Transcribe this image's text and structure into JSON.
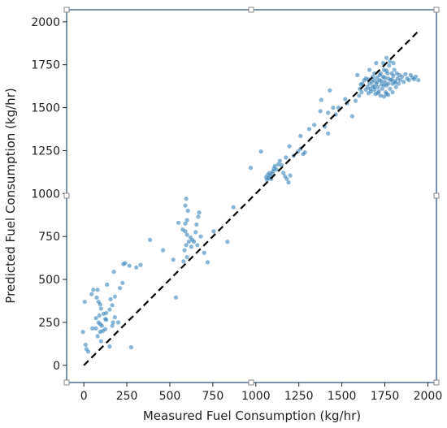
{
  "chart_data": {
    "type": "scatter",
    "title": "",
    "xlabel": "Measured Fuel Consumption (kg/hr)",
    "ylabel": "Predicted Fuel Consumption (kg/hr)",
    "xlim": [
      -100,
      2050
    ],
    "ylim": [
      -100,
      2070
    ],
    "xticks": [
      0,
      250,
      500,
      750,
      1000,
      1250,
      1500,
      1750,
      2000
    ],
    "yticks": [
      0,
      250,
      500,
      750,
      1000,
      1250,
      1500,
      1750,
      2000
    ],
    "xtick_labels": [
      "0",
      "250",
      "500",
      "750",
      "1000",
      "1250",
      "1500",
      "1750",
      "2000"
    ],
    "ytick_labels": [
      "0",
      "250",
      "500",
      "750",
      "1000",
      "1250",
      "1500",
      "1750",
      "2000"
    ],
    "grid": false,
    "legend": "none",
    "point_color": "#2878b5",
    "frame_color": "#1f4e79",
    "reference_line": {
      "style": "dashed",
      "color": "#000000",
      "points": [
        [
          0,
          0
        ],
        [
          1950,
          1950
        ]
      ]
    },
    "series": [
      {
        "points": [
          [
            -5,
            195
          ],
          [
            10,
            120
          ],
          [
            15,
            95
          ],
          [
            25,
            80
          ],
          [
            5,
            370
          ],
          [
            45,
            415
          ],
          [
            55,
            440
          ],
          [
            80,
            440
          ],
          [
            75,
            395
          ],
          [
            85,
            370
          ],
          [
            95,
            355
          ],
          [
            100,
            330
          ],
          [
            115,
            300
          ],
          [
            130,
            305
          ],
          [
            150,
            325
          ],
          [
            125,
            270
          ],
          [
            90,
            290
          ],
          [
            70,
            275
          ],
          [
            85,
            250
          ],
          [
            95,
            240
          ],
          [
            105,
            230
          ],
          [
            70,
            215
          ],
          [
            50,
            215
          ],
          [
            95,
            195
          ],
          [
            110,
            200
          ],
          [
            130,
            265
          ],
          [
            125,
            210
          ],
          [
            165,
            230
          ],
          [
            170,
            250
          ],
          [
            200,
            250
          ],
          [
            180,
            280
          ],
          [
            165,
            350
          ],
          [
            155,
            385
          ],
          [
            180,
            400
          ],
          [
            210,
            450
          ],
          [
            225,
            480
          ],
          [
            135,
            470
          ],
          [
            175,
            545
          ],
          [
            230,
            590
          ],
          [
            240,
            595
          ],
          [
            265,
            580
          ],
          [
            305,
            570
          ],
          [
            330,
            585
          ],
          [
            385,
            730
          ],
          [
            460,
            670
          ],
          [
            535,
            395
          ],
          [
            275,
            105
          ],
          [
            150,
            110
          ],
          [
            80,
            170
          ],
          [
            100,
            140
          ],
          [
            520,
            615
          ],
          [
            580,
            605
          ],
          [
            600,
            630
          ],
          [
            585,
            670
          ],
          [
            595,
            700
          ],
          [
            610,
            720
          ],
          [
            620,
            745
          ],
          [
            630,
            730
          ],
          [
            590,
            780
          ],
          [
            575,
            790
          ],
          [
            600,
            760
          ],
          [
            640,
            720
          ],
          [
            660,
            700
          ],
          [
            625,
            690
          ],
          [
            650,
            775
          ],
          [
            590,
            825
          ],
          [
            550,
            830
          ],
          [
            600,
            845
          ],
          [
            655,
            820
          ],
          [
            665,
            865
          ],
          [
            670,
            890
          ],
          [
            595,
            970
          ],
          [
            590,
            930
          ],
          [
            605,
            900
          ],
          [
            680,
            750
          ],
          [
            700,
            655
          ],
          [
            720,
            600
          ],
          [
            755,
            780
          ],
          [
            835,
            720
          ],
          [
            870,
            920
          ]
        ]
      },
      {
        "points": [
          [
            970,
            1150
          ],
          [
            1030,
            1245
          ],
          [
            1060,
            1095
          ],
          [
            1065,
            1080
          ],
          [
            1070,
            1110
          ],
          [
            1075,
            1090
          ],
          [
            1080,
            1120
          ],
          [
            1085,
            1100
          ],
          [
            1090,
            1085
          ],
          [
            1095,
            1115
          ],
          [
            1100,
            1130
          ],
          [
            1105,
            1145
          ],
          [
            1110,
            1160
          ],
          [
            1120,
            1140
          ],
          [
            1130,
            1170
          ],
          [
            1140,
            1190
          ],
          [
            1150,
            1165
          ],
          [
            1160,
            1120
          ],
          [
            1170,
            1100
          ],
          [
            1180,
            1085
          ],
          [
            1190,
            1065
          ],
          [
            1200,
            1105
          ],
          [
            1175,
            1210
          ],
          [
            1195,
            1275
          ],
          [
            1220,
            1220
          ],
          [
            1245,
            1245
          ],
          [
            1260,
            1260
          ],
          [
            1275,
            1230
          ],
          [
            1285,
            1240
          ],
          [
            1260,
            1335
          ],
          [
            1310,
            1375
          ],
          [
            1340,
            1400
          ],
          [
            1375,
            1480
          ],
          [
            1420,
            1470
          ],
          [
            1450,
            1500
          ],
          [
            1480,
            1500
          ],
          [
            1400,
            1390
          ],
          [
            1420,
            1350
          ],
          [
            1380,
            1545
          ],
          [
            1430,
            1600
          ],
          [
            1465,
            1460
          ],
          [
            1520,
            1550
          ],
          [
            1530,
            1525
          ],
          [
            1560,
            1450
          ],
          [
            1580,
            1540
          ],
          [
            1600,
            1570
          ],
          [
            1610,
            1635
          ],
          [
            1590,
            1690
          ]
        ]
      },
      {
        "points": [
          [
            1640,
            1605
          ],
          [
            1650,
            1620
          ],
          [
            1655,
            1585
          ],
          [
            1660,
            1640
          ],
          [
            1665,
            1610
          ],
          [
            1670,
            1595
          ],
          [
            1675,
            1650
          ],
          [
            1680,
            1625
          ],
          [
            1685,
            1660
          ],
          [
            1690,
            1605
          ],
          [
            1695,
            1580
          ],
          [
            1700,
            1640
          ],
          [
            1705,
            1675
          ],
          [
            1710,
            1620
          ],
          [
            1715,
            1595
          ],
          [
            1720,
            1660
          ],
          [
            1725,
            1700
          ],
          [
            1730,
            1635
          ],
          [
            1735,
            1610
          ],
          [
            1740,
            1680
          ],
          [
            1745,
            1720
          ],
          [
            1750,
            1650
          ],
          [
            1755,
            1590
          ],
          [
            1760,
            1630
          ],
          [
            1765,
            1700
          ],
          [
            1770,
            1670
          ],
          [
            1775,
            1745
          ],
          [
            1780,
            1610
          ],
          [
            1785,
            1660
          ],
          [
            1790,
            1700
          ],
          [
            1795,
            1640
          ],
          [
            1800,
            1685
          ],
          [
            1805,
            1720
          ],
          [
            1810,
            1655
          ],
          [
            1815,
            1620
          ],
          [
            1820,
            1700
          ],
          [
            1825,
            1670
          ],
          [
            1830,
            1640
          ],
          [
            1835,
            1690
          ],
          [
            1840,
            1660
          ],
          [
            1850,
            1680
          ],
          [
            1860,
            1650
          ],
          [
            1870,
            1695
          ],
          [
            1880,
            1670
          ],
          [
            1890,
            1660
          ],
          [
            1900,
            1690
          ],
          [
            1910,
            1675
          ],
          [
            1920,
            1665
          ],
          [
            1930,
            1680
          ],
          [
            1945,
            1660
          ],
          [
            1760,
            1790
          ],
          [
            1780,
            1770
          ],
          [
            1740,
            1760
          ],
          [
            1800,
            1760
          ],
          [
            1700,
            1760
          ],
          [
            1690,
            1700
          ],
          [
            1660,
            1720
          ],
          [
            1640,
            1670
          ],
          [
            1630,
            1660
          ],
          [
            1620,
            1640
          ],
          [
            1605,
            1610
          ],
          [
            1615,
            1590
          ],
          [
            1725,
            1570
          ],
          [
            1745,
            1565
          ],
          [
            1770,
            1575
          ],
          [
            1795,
            1590
          ],
          [
            1760,
            1580
          ],
          [
            1710,
            1585
          ],
          [
            1690,
            1620
          ],
          [
            1730,
            1655
          ],
          [
            1750,
            1675
          ],
          [
            1790,
            1665
          ],
          [
            1810,
            1645
          ],
          [
            1770,
            1640
          ],
          [
            1745,
            1630
          ],
          [
            1705,
            1650
          ],
          [
            1680,
            1680
          ],
          [
            1655,
            1665
          ],
          [
            1720,
            1690
          ],
          [
            1760,
            1715
          ]
        ]
      }
    ]
  }
}
